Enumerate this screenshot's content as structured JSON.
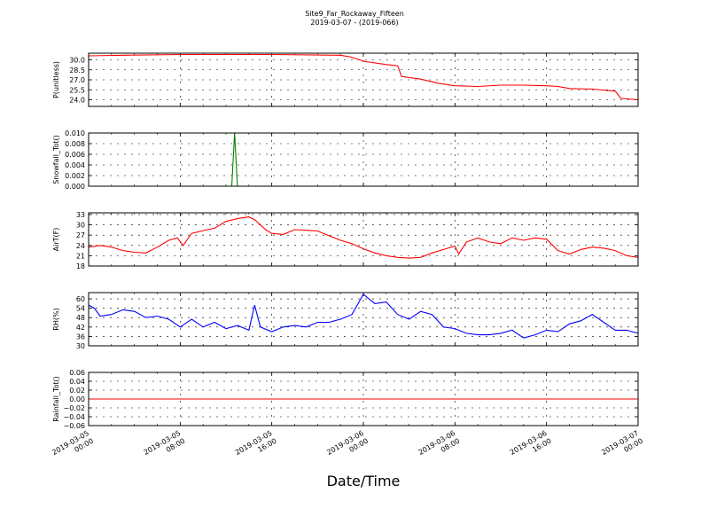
{
  "figure": {
    "title_line1": "Site9_Far_Rockaway_Fifteen",
    "title_line2": "2019-03-07 - (2019-066)",
    "xlabel": "Date/Time",
    "x_tick_labels": [
      [
        "2019-03-05",
        "00:00"
      ],
      [
        "2019-03-05",
        "08:00"
      ],
      [
        "2019-03-05",
        "16:00"
      ],
      [
        "2019-03-06",
        "00:00"
      ],
      [
        "2019-03-06",
        "08:00"
      ],
      [
        "2019-03-06",
        "16:00"
      ],
      [
        "2019-03-07",
        "00:00"
      ]
    ]
  },
  "chart_data": [
    {
      "type": "line",
      "ylabel": "P(unitless)",
      "color": "#ff0000",
      "ylim": [
        23.0,
        31.0
      ],
      "yticks": [
        24.0,
        25.5,
        27.0,
        28.5,
        30.0
      ],
      "ytick_labels": [
        "24.0",
        "25.5",
        "27.0",
        "28.5",
        "30.0"
      ],
      "xlim": [
        "2019-03-05 00:00",
        "2019-03-07 00:00"
      ],
      "grid": true,
      "x": [
        "2019-03-05 00:00",
        "2019-03-05 03:00",
        "2019-03-05 08:00",
        "2019-03-05 16:00",
        "2019-03-05 22:00",
        "2019-03-05 23:00",
        "2019-03-06 00:00",
        "2019-03-06 02:00",
        "2019-03-06 03:00",
        "2019-03-06 03:20",
        "2019-03-06 05:00",
        "2019-03-06 06:30",
        "2019-03-06 08:00",
        "2019-03-06 10:00",
        "2019-03-06 12:00",
        "2019-03-06 14:00",
        "2019-03-06 16:00",
        "2019-03-06 17:00",
        "2019-03-06 18:00",
        "2019-03-06 20:00",
        "2019-03-06 22:00",
        "2019-03-06 22:30",
        "2019-03-07 00:00"
      ],
      "values": [
        30.6,
        30.7,
        30.8,
        30.8,
        30.7,
        30.4,
        29.8,
        29.3,
        29.1,
        27.5,
        27.1,
        26.5,
        26.1,
        26.0,
        26.2,
        26.2,
        26.1,
        26.0,
        25.7,
        25.6,
        25.3,
        24.2,
        24.0
      ]
    },
    {
      "type": "line",
      "ylabel": "Snowfall_Tot()",
      "color": "#008000",
      "ylim": [
        0.0,
        0.01
      ],
      "yticks": [
        0.0,
        0.002,
        0.004,
        0.006,
        0.008,
        0.01
      ],
      "ytick_labels": [
        "0.000",
        "0.002",
        "0.004",
        "0.006",
        "0.008",
        "0.010"
      ],
      "xlim": [
        "2019-03-05 00:00",
        "2019-03-07 00:00"
      ],
      "grid": true,
      "x": [
        "2019-03-05 00:00",
        "2019-03-05 12:30",
        "2019-03-05 12:45",
        "2019-03-05 13:00",
        "2019-03-07 00:00"
      ],
      "values": [
        0.0,
        0.0,
        0.01,
        0.0,
        0.0
      ]
    },
    {
      "type": "line",
      "ylabel": "AirT(F)",
      "color": "#ff0000",
      "ylim": [
        18,
        33.5
      ],
      "yticks": [
        18,
        21,
        24,
        27,
        30,
        33
      ],
      "ytick_labels": [
        "18",
        "21",
        "24",
        "27",
        "30",
        "33"
      ],
      "xlim": [
        "2019-03-05 00:00",
        "2019-03-07 00:00"
      ],
      "grid": true,
      "x": [
        "2019-03-05 00:00",
        "2019-03-05 01:00",
        "2019-03-05 02:00",
        "2019-03-05 03:00",
        "2019-03-05 04:00",
        "2019-03-05 05:00",
        "2019-03-05 06:00",
        "2019-03-05 07:00",
        "2019-03-05 07:45",
        "2019-03-05 08:15",
        "2019-03-05 09:00",
        "2019-03-05 10:00",
        "2019-03-05 11:00",
        "2019-03-05 12:00",
        "2019-03-05 13:00",
        "2019-03-05 14:00",
        "2019-03-05 14:30",
        "2019-03-05 15:30",
        "2019-03-05 16:00",
        "2019-03-05 17:00",
        "2019-03-05 18:00",
        "2019-03-05 19:00",
        "2019-03-05 20:00",
        "2019-03-05 21:00",
        "2019-03-05 22:00",
        "2019-03-05 23:00",
        "2019-03-06 00:00",
        "2019-03-06 01:00",
        "2019-03-06 02:00",
        "2019-03-06 03:00",
        "2019-03-06 04:00",
        "2019-03-06 05:00",
        "2019-03-06 06:00",
        "2019-03-06 07:00",
        "2019-03-06 08:00",
        "2019-03-06 08:20",
        "2019-03-06 09:00",
        "2019-03-06 10:00",
        "2019-03-06 11:00",
        "2019-03-06 12:00",
        "2019-03-06 13:00",
        "2019-03-06 14:00",
        "2019-03-06 15:00",
        "2019-03-06 16:00",
        "2019-03-06 17:00",
        "2019-03-06 18:00",
        "2019-03-06 19:00",
        "2019-03-06 20:00",
        "2019-03-06 21:00",
        "2019-03-06 22:00",
        "2019-03-06 23:00",
        "2019-03-07 00:00"
      ],
      "values": [
        23.5,
        24.0,
        23.5,
        22.5,
        22.0,
        21.8,
        23.5,
        25.5,
        26.2,
        24.0,
        27.5,
        28.3,
        29.0,
        31.0,
        31.8,
        32.3,
        31.5,
        28.5,
        27.5,
        27.2,
        28.6,
        28.4,
        28.2,
        26.8,
        25.5,
        24.5,
        23.0,
        21.8,
        21.0,
        20.5,
        20.3,
        20.5,
        21.8,
        22.8,
        23.8,
        21.5,
        25.0,
        26.2,
        25.0,
        24.5,
        26.2,
        25.5,
        26.2,
        25.8,
        22.5,
        21.5,
        22.8,
        23.5,
        23.2,
        22.5,
        21.0,
        20.5
      ]
    },
    {
      "type": "line",
      "ylabel": "RH(%)",
      "color": "#0000ff",
      "ylim": [
        30,
        64
      ],
      "yticks": [
        30,
        36,
        42,
        48,
        54,
        60
      ],
      "ytick_labels": [
        "30",
        "36",
        "42",
        "48",
        "54",
        "60"
      ],
      "xlim": [
        "2019-03-05 00:00",
        "2019-03-07 00:00"
      ],
      "grid": true,
      "x": [
        "2019-03-05 00:00",
        "2019-03-05 00:30",
        "2019-03-05 01:00",
        "2019-03-05 02:00",
        "2019-03-05 03:00",
        "2019-03-05 04:00",
        "2019-03-05 05:00",
        "2019-03-05 06:00",
        "2019-03-05 07:00",
        "2019-03-05 08:00",
        "2019-03-05 09:00",
        "2019-03-05 10:00",
        "2019-03-05 11:00",
        "2019-03-05 12:00",
        "2019-03-05 13:00",
        "2019-03-05 14:00",
        "2019-03-05 14:30",
        "2019-03-05 15:00",
        "2019-03-05 16:00",
        "2019-03-05 17:00",
        "2019-03-05 18:00",
        "2019-03-05 19:00",
        "2019-03-05 20:00",
        "2019-03-05 21:00",
        "2019-03-05 22:00",
        "2019-03-05 23:00",
        "2019-03-06 00:00",
        "2019-03-06 01:00",
        "2019-03-06 02:00",
        "2019-03-06 03:00",
        "2019-03-06 04:00",
        "2019-03-06 05:00",
        "2019-03-06 06:00",
        "2019-03-06 07:00",
        "2019-03-06 08:00",
        "2019-03-06 09:00",
        "2019-03-06 10:00",
        "2019-03-06 11:00",
        "2019-03-06 12:00",
        "2019-03-06 13:00",
        "2019-03-06 14:00",
        "2019-03-06 15:00",
        "2019-03-06 16:00",
        "2019-03-06 17:00",
        "2019-03-06 18:00",
        "2019-03-06 19:00",
        "2019-03-06 20:00",
        "2019-03-06 21:00",
        "2019-03-06 22:00",
        "2019-03-06 23:00",
        "2019-03-07 00:00"
      ],
      "values": [
        56,
        54,
        49,
        50,
        53,
        52,
        48,
        49,
        47,
        42,
        47,
        42,
        45,
        41,
        43,
        40,
        56,
        42,
        39,
        42,
        43,
        42,
        45,
        45,
        47,
        50,
        63,
        57,
        58,
        50,
        47,
        52,
        50,
        42,
        41,
        38,
        37,
        37,
        38,
        40,
        35,
        37,
        40,
        39,
        44,
        46,
        50,
        45,
        40,
        40,
        38
      ]
    },
    {
      "type": "line",
      "ylabel": "Rainfall_Tot()",
      "color": "#ff0000",
      "ylim": [
        -0.06,
        0.06
      ],
      "yticks": [
        -0.06,
        -0.04,
        -0.02,
        0.0,
        0.02,
        0.04,
        0.06
      ],
      "ytick_labels": [
        "−0.06",
        "−0.04",
        "−0.02",
        "0.00",
        "0.02",
        "0.04",
        "0.06"
      ],
      "xlim": [
        "2019-03-05 00:00",
        "2019-03-07 00:00"
      ],
      "grid": true,
      "x": [
        "2019-03-05 00:00",
        "2019-03-07 00:00"
      ],
      "values": [
        0.0,
        0.0
      ]
    }
  ]
}
